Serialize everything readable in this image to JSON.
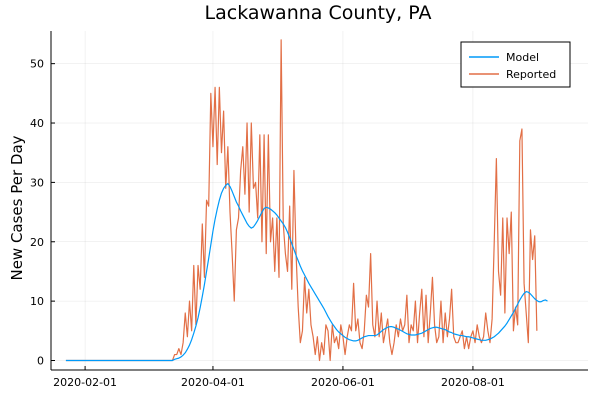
{
  "chart_data": {
    "type": "line",
    "title": "Lackawanna County, PA",
    "xlabel": "",
    "ylabel": "New Cases Per Day",
    "x_start": "2020-01-23",
    "x_ticks": [
      "2020-02-01",
      "2020-04-01",
      "2020-06-01",
      "2020-08-01"
    ],
    "y_ticks": [
      0,
      10,
      20,
      30,
      40,
      50
    ],
    "xlim": [
      "2020-01-16",
      "2020-09-24"
    ],
    "ylim": [
      -1.6,
      55.5
    ],
    "grid": true,
    "legend_position": "top-right",
    "series": [
      {
        "name": "Model",
        "color": "#009af9",
        "values": [
          0,
          0,
          0,
          0,
          0,
          0,
          0,
          0,
          0,
          0,
          0,
          0,
          0,
          0,
          0,
          0,
          0,
          0,
          0,
          0,
          0,
          0,
          0,
          0,
          0,
          0,
          0,
          0,
          0,
          0,
          0,
          0,
          0,
          0,
          0,
          0,
          0,
          0,
          0,
          0,
          0,
          0,
          0,
          0,
          0,
          0,
          0,
          0,
          0,
          0,
          0,
          0.2,
          0.3,
          0.4,
          0.6,
          0.9,
          1.3,
          1.9,
          2.6,
          3.5,
          4.6,
          5.8,
          7.2,
          8.9,
          10.8,
          12.8,
          15.0,
          17.2,
          19.5,
          21.8,
          23.8,
          25.5,
          27.0,
          28.2,
          29.0,
          29.5,
          29.8,
          29.3,
          28.5,
          27.6,
          26.7,
          26.0,
          25.2,
          24.5,
          23.8,
          23.1,
          22.6,
          22.3,
          22.5,
          23.0,
          23.6,
          24.3,
          25.0,
          25.6,
          25.8,
          25.7,
          25.5,
          25.2,
          24.9,
          24.5,
          24.0,
          23.5,
          23.0,
          22.4,
          21.6,
          20.7,
          19.7,
          18.7,
          17.7,
          16.8,
          15.9,
          15.1,
          14.4,
          13.7,
          13.0,
          12.4,
          11.8,
          11.2,
          10.6,
          10.0,
          9.4,
          8.8,
          8.1,
          7.4,
          6.8,
          6.2,
          5.7,
          5.2,
          4.8,
          4.5,
          4.2,
          3.9,
          3.7,
          3.5,
          3.4,
          3.3,
          3.3,
          3.4,
          3.6,
          3.8,
          4.0,
          4.1,
          4.2,
          4.2,
          4.2,
          4.2,
          4.3,
          4.6,
          4.9,
          5.2,
          5.4,
          5.6,
          5.7,
          5.7,
          5.6,
          5.4,
          5.3,
          5.1,
          4.9,
          4.7,
          4.5,
          4.4,
          4.3,
          4.3,
          4.3,
          4.4,
          4.5,
          4.6,
          4.8,
          5.0,
          5.2,
          5.4,
          5.5,
          5.6,
          5.6,
          5.5,
          5.4,
          5.3,
          5.2,
          5.0,
          4.8,
          4.7,
          4.5,
          4.4,
          4.3,
          4.2,
          4.2,
          4.1,
          4.0,
          4.0,
          3.9,
          3.8,
          3.7,
          3.6,
          3.5,
          3.4,
          3.4,
          3.4,
          3.5,
          3.6,
          3.8,
          4.0,
          4.3,
          4.6,
          5.0,
          5.4,
          5.8,
          6.3,
          6.9,
          7.5,
          8.1,
          8.8,
          9.5,
          10.2,
          10.8,
          11.3,
          11.6,
          11.5,
          11.2,
          10.8,
          10.4,
          10.1,
          9.9,
          9.9,
          10.1,
          10.2,
          10.0
        ]
      },
      {
        "name": "Reported",
        "color": "#e26f46",
        "values": [
          0,
          0,
          0,
          0,
          0,
          0,
          0,
          0,
          0,
          0,
          0,
          0,
          0,
          0,
          0,
          0,
          0,
          0,
          0,
          0,
          0,
          0,
          0,
          0,
          0,
          0,
          0,
          0,
          0,
          0,
          0,
          0,
          0,
          0,
          0,
          0,
          0,
          0,
          0,
          0,
          0,
          0,
          0,
          0,
          0,
          0,
          0,
          0,
          0,
          0,
          0,
          1,
          1,
          2,
          1,
          3,
          8,
          4,
          10,
          5,
          16,
          6,
          16,
          12,
          23,
          14,
          27,
          26,
          45,
          36,
          46,
          33,
          46,
          35,
          42,
          29,
          36,
          25,
          18,
          10,
          22,
          24,
          32,
          36,
          28,
          40,
          25,
          40,
          29,
          30,
          24,
          38,
          20,
          38,
          18,
          38,
          20,
          24,
          15,
          24,
          14,
          54,
          23,
          18,
          15,
          26,
          12,
          32,
          18,
          9,
          3,
          5,
          14,
          8,
          12,
          6,
          4,
          1,
          4,
          0,
          3,
          1,
          6,
          5,
          0,
          6,
          3,
          4,
          2,
          6,
          4,
          1,
          4,
          6,
          5,
          13,
          5,
          7,
          3,
          2,
          5,
          11,
          9,
          18,
          6,
          4,
          10,
          4,
          8,
          3,
          5,
          7,
          3,
          1,
          3,
          6,
          4,
          7,
          5,
          6,
          11,
          3,
          6,
          5,
          10,
          3,
          8,
          12,
          4,
          11,
          3,
          8,
          14,
          6,
          3,
          4,
          10,
          3,
          8,
          4,
          7,
          12,
          4,
          3,
          3,
          4,
          5,
          2,
          4,
          2,
          4,
          5,
          3,
          6,
          4,
          3,
          4,
          8,
          5,
          3,
          7,
          20,
          34,
          15,
          11,
          24,
          8,
          24,
          18,
          25,
          5,
          9,
          6,
          37,
          39,
          13,
          8,
          3,
          22,
          17,
          21,
          5
        ]
      }
    ]
  }
}
